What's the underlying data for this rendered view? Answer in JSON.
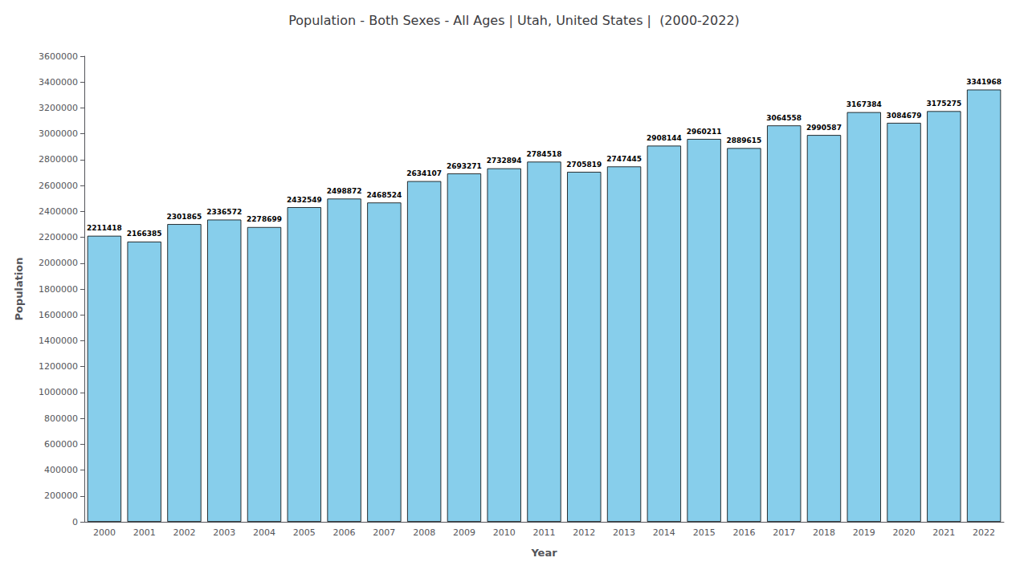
{
  "chart_data": {
    "type": "bar",
    "title": "Population - Both Sexes - All Ages | Utah, United States |  (2000-2022)",
    "xlabel": "Year",
    "ylabel": "Population",
    "categories": [
      "2000",
      "2001",
      "2002",
      "2003",
      "2004",
      "2005",
      "2006",
      "2007",
      "2008",
      "2009",
      "2010",
      "2011",
      "2012",
      "2013",
      "2014",
      "2015",
      "2016",
      "2017",
      "2018",
      "2019",
      "2020",
      "2021",
      "2022"
    ],
    "values": [
      2211418,
      2166385,
      2301865,
      2336572,
      2278699,
      2432549,
      2498872,
      2468524,
      2634107,
      2693271,
      2732894,
      2784518,
      2705819,
      2747445,
      2908144,
      2960211,
      2889615,
      3064558,
      2990587,
      3167384,
      3084679,
      3175275,
      3341968
    ],
    "color": "#87CEEB",
    "ylim": [
      0,
      3600000
    ],
    "yticks": [
      0,
      200000,
      400000,
      600000,
      800000,
      1000000,
      1200000,
      1400000,
      1600000,
      1800000,
      2000000,
      2200000,
      2400000,
      2600000,
      2800000,
      3000000,
      3200000,
      3400000,
      3600000
    ],
    "data_labels": true,
    "grid": false
  }
}
